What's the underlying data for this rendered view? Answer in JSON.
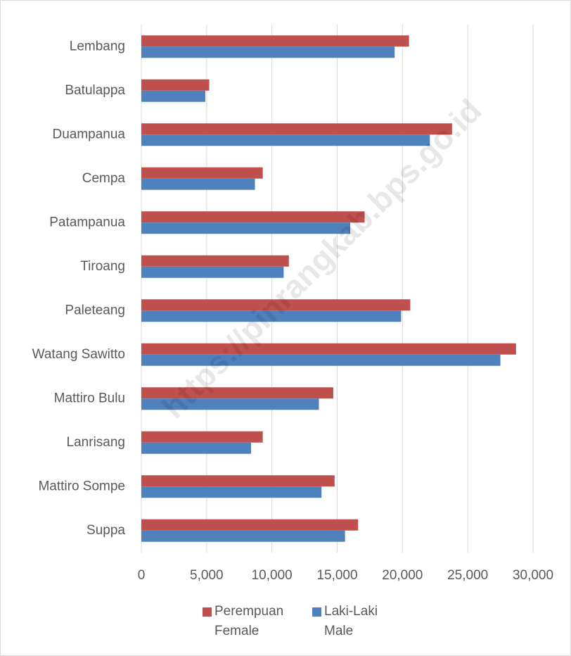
{
  "chart_data": {
    "type": "barh",
    "categories": [
      "Lembang",
      "Batulappa",
      "Duampanua",
      "Cempa",
      "Patampanua",
      "Tiroang",
      "Paleteang",
      "Watang Sawitto",
      "Mattiro Bulu",
      "Lanrisang",
      "Mattiro Sompe",
      "Suppa"
    ],
    "series": [
      {
        "name": "Perempuan\nFemale",
        "color": "#c0504d",
        "values": [
          20500,
          5200,
          23800,
          9300,
          17100,
          11300,
          20600,
          28700,
          14700,
          9300,
          14800,
          16600
        ]
      },
      {
        "name": "Laki-Laki\nMale",
        "color": "#4f81bd",
        "values": [
          19400,
          4900,
          22100,
          8700,
          16000,
          10900,
          19900,
          27500,
          13600,
          8400,
          13800,
          15600
        ]
      }
    ],
    "xlim": [
      0,
      30000
    ],
    "xticks": [
      0,
      {
        "value": 5000,
        "label": "5,000"
      },
      {
        "value": 10000,
        "label": "10,000"
      },
      {
        "value": 15000,
        "label": "15,000"
      },
      {
        "value": 20000,
        "label": "20,000"
      },
      {
        "value": 25000,
        "label": "25,000"
      },
      {
        "value": 30000,
        "label": "30,000"
      }
    ],
    "grid": true,
    "legend": "bottom",
    "watermark": "https://pinrangkab.bps.go.id"
  }
}
